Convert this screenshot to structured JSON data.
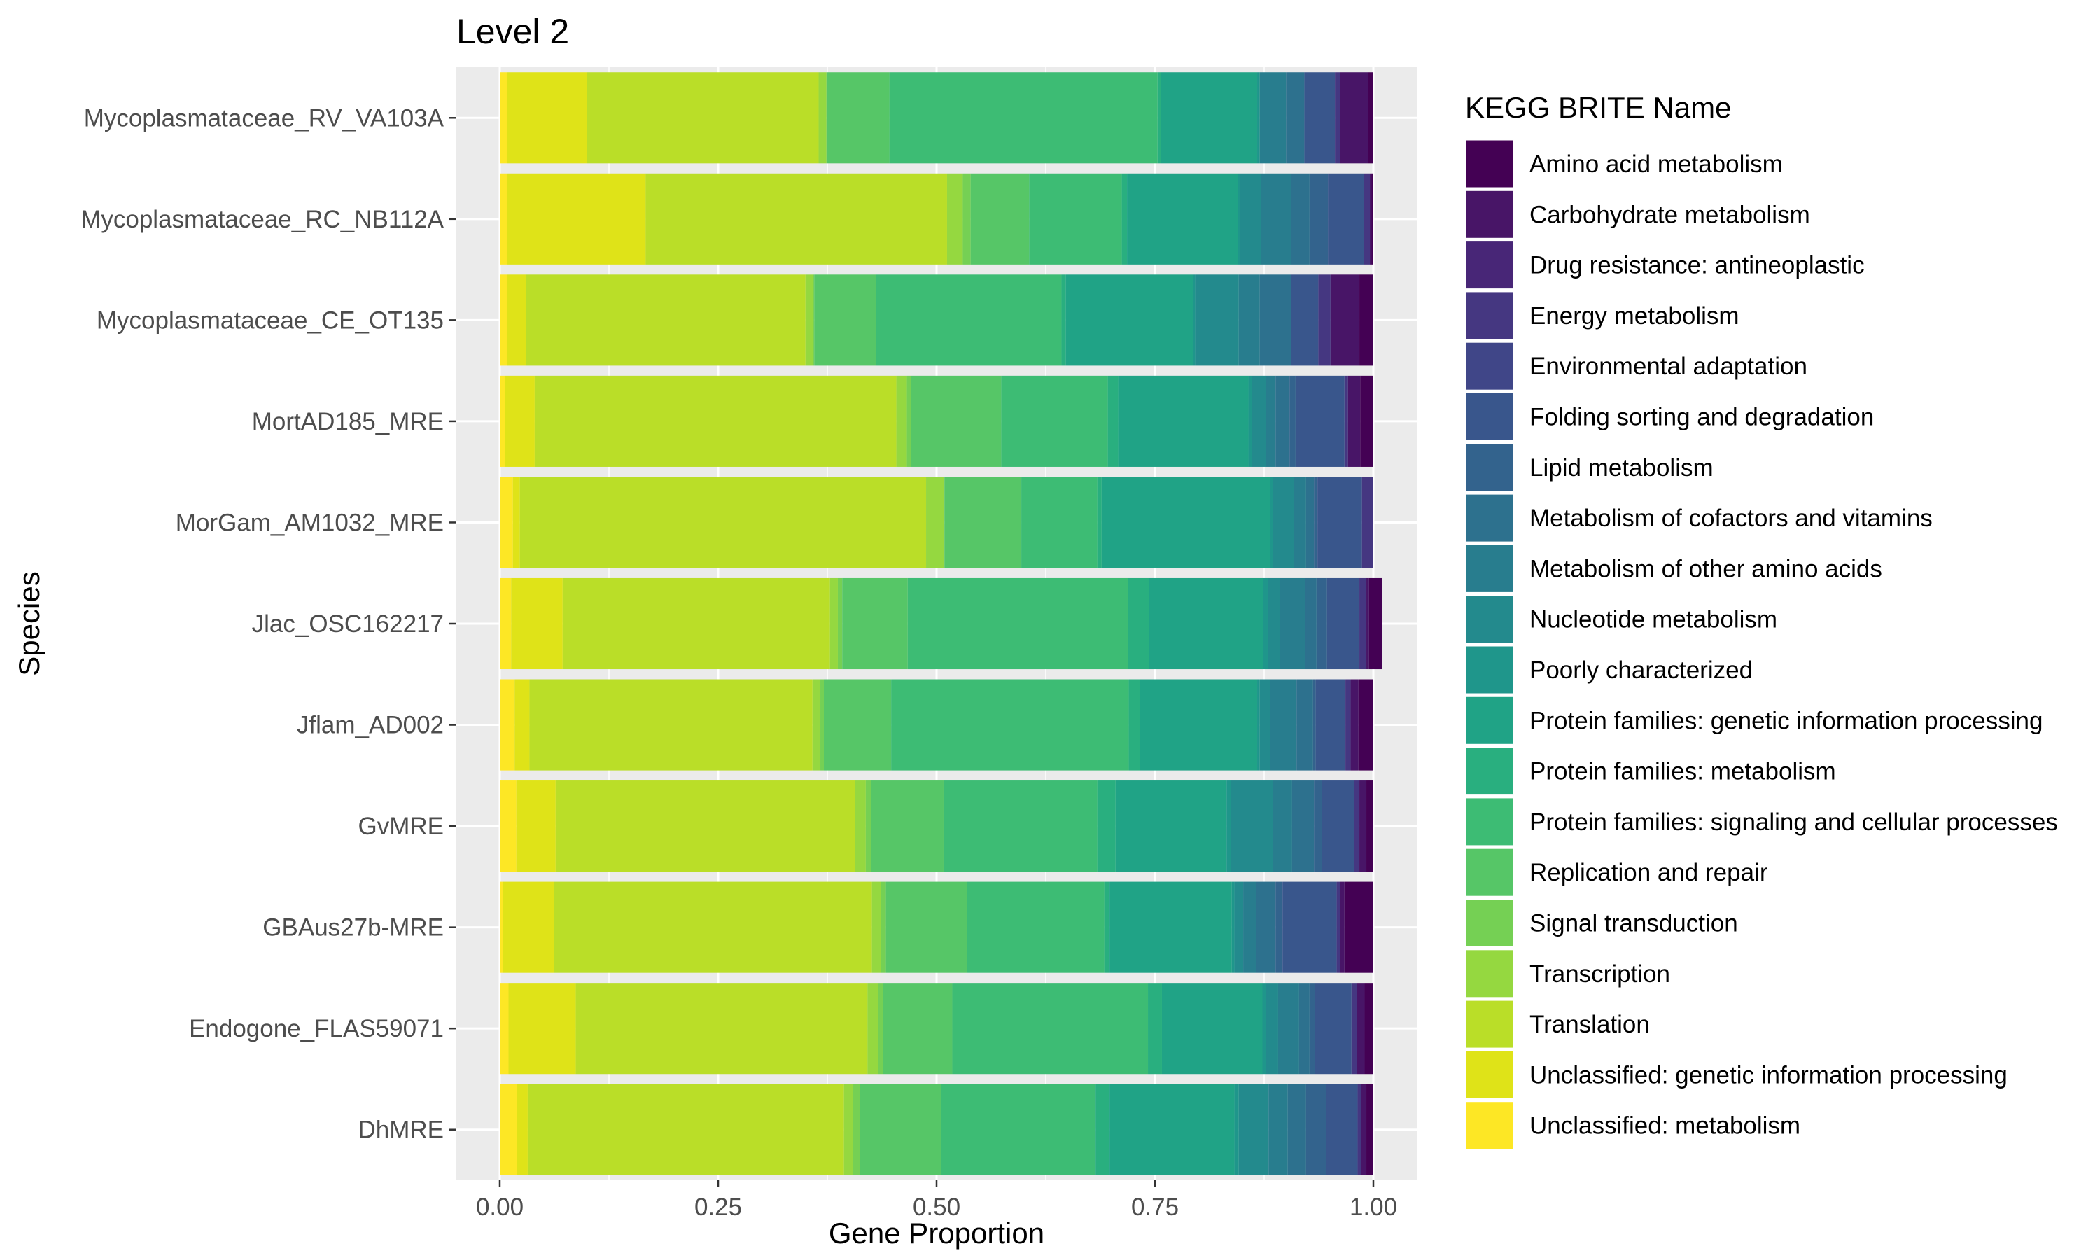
{
  "chart_data": {
    "type": "bar",
    "orientation": "horizontal",
    "stacked": true,
    "title": "Level 2",
    "xlabel": "Gene Proportion",
    "ylabel": "Species",
    "xlim": [
      0,
      1
    ],
    "x_ticks": [
      0,
      0.25,
      0.5,
      0.75,
      1
    ],
    "x_tick_labels": [
      "0.00",
      "0.25",
      "0.50",
      "0.75",
      "1.00"
    ],
    "grid": true,
    "legend": {
      "title": "KEGG BRITE Name",
      "position": "right"
    },
    "categories": [
      "Mycoplasmataceae_RV_VA103A",
      "Mycoplasmataceae_RC_NB112A",
      "Mycoplasmataceae_CE_OT135",
      "MortAD185_MRE",
      "MorGam_AM1032_MRE",
      "Jlac_OSC162217",
      "Jflam_AD002",
      "GvMRE",
      "GBAus27b-MRE",
      "Endogone_FLAS59071",
      "DhMRE"
    ],
    "series": [
      {
        "name": "Unclassified: metabolism",
        "color": "#FDE725",
        "values": [
          0.008,
          0.008,
          0.008,
          0.006,
          0.015,
          0.013,
          0.017,
          0.019,
          0.004,
          0.01,
          0.02
        ]
      },
      {
        "name": "Unclassified: genetic information processing",
        "color": "#DFE318",
        "values": [
          0.092,
          0.159,
          0.022,
          0.034,
          0.008,
          0.059,
          0.017,
          0.045,
          0.058,
          0.077,
          0.012
        ]
      },
      {
        "name": "Translation",
        "color": "#BADE28",
        "values": [
          0.265,
          0.345,
          0.32,
          0.414,
          0.465,
          0.306,
          0.324,
          0.343,
          0.364,
          0.334,
          0.362
        ]
      },
      {
        "name": "Transcription",
        "color": "#95D840",
        "values": [
          0.009,
          0.018,
          0.009,
          0.012,
          0.021,
          0.009,
          0.009,
          0.012,
          0.01,
          0.012,
          0.01
        ]
      },
      {
        "name": "Signal transduction",
        "color": "#75D054",
        "values": [
          0.0,
          0.009,
          0.001,
          0.005,
          0.0,
          0.005,
          0.004,
          0.006,
          0.006,
          0.006,
          0.008
        ]
      },
      {
        "name": "Replication and repair",
        "color": "#56C667",
        "values": [
          0.072,
          0.067,
          0.071,
          0.103,
          0.088,
          0.075,
          0.077,
          0.083,
          0.093,
          0.079,
          0.093
        ]
      },
      {
        "name": "Protein families: signaling and cellular processes",
        "color": "#3DBC74",
        "values": [
          0.307,
          0.106,
          0.212,
          0.122,
          0.087,
          0.252,
          0.272,
          0.176,
          0.157,
          0.224,
          0.177
        ]
      },
      {
        "name": "Protein families: metabolism",
        "color": "#29AF7F",
        "values": [
          0.004,
          0.006,
          0.005,
          0.012,
          0.005,
          0.024,
          0.013,
          0.021,
          0.006,
          0.016,
          0.016
        ]
      },
      {
        "name": "Protein families: genetic information processing",
        "color": "#20A386",
        "values": [
          0.11,
          0.127,
          0.146,
          0.149,
          0.193,
          0.131,
          0.134,
          0.127,
          0.14,
          0.115,
          0.143
        ]
      },
      {
        "name": "Poorly characterized",
        "color": "#1F968B",
        "values": [
          0.003,
          0.002,
          0.002,
          0.004,
          0.003,
          0.005,
          0.003,
          0.005,
          0.003,
          0.004,
          0.005
        ]
      },
      {
        "name": "Nucleotide metabolism",
        "color": "#238A8D",
        "values": [
          0.0,
          0.024,
          0.05,
          0.016,
          0.024,
          0.014,
          0.012,
          0.048,
          0.01,
          0.014,
          0.034
        ]
      },
      {
        "name": "Metabolism of other amino acids",
        "color": "#287D8E",
        "values": [
          0.03,
          0.035,
          0.024,
          0.011,
          0.014,
          0.029,
          0.03,
          0.022,
          0.015,
          0.024,
          0.022
        ]
      },
      {
        "name": "Metabolism of cofactors and vitamins",
        "color": "#2D718E",
        "values": [
          0.021,
          0.021,
          0.036,
          0.016,
          0.009,
          0.013,
          0.019,
          0.025,
          0.022,
          0.012,
          0.021
        ]
      },
      {
        "name": "Lipid metabolism",
        "color": "#33638D",
        "values": [
          0.0,
          0.021,
          0.0,
          0.007,
          0.004,
          0.012,
          0.003,
          0.009,
          0.008,
          0.006,
          0.023
        ]
      },
      {
        "name": "Folding sorting and degradation",
        "color": "#39568C",
        "values": [
          0.035,
          0.041,
          0.031,
          0.056,
          0.051,
          0.037,
          0.034,
          0.037,
          0.062,
          0.042,
          0.036
        ]
      },
      {
        "name": "Environmental adaptation",
        "color": "#404688",
        "values": [
          0.0,
          0.0,
          0.0,
          0.0,
          0.0,
          0.0,
          0.0,
          0.0,
          0.0,
          0.0,
          0.0
        ]
      },
      {
        "name": "Energy metabolism",
        "color": "#453781",
        "values": [
          0.006,
          0.007,
          0.014,
          0.004,
          0.013,
          0.008,
          0.006,
          0.006,
          0.004,
          0.006,
          0.004
        ]
      },
      {
        "name": "Drug resistance: antineoplastic",
        "color": "#482677",
        "values": [
          0.0,
          0.0,
          0.0,
          0.0,
          0.0,
          0.0,
          0.0,
          0.0,
          0.0,
          0.0,
          0.0
        ]
      },
      {
        "name": "Carbohydrate metabolism",
        "color": "#481567",
        "values": [
          0.032,
          0.002,
          0.033,
          0.014,
          0.0,
          0.003,
          0.009,
          0.008,
          0.005,
          0.009,
          0.006
        ]
      },
      {
        "name": "Amino acid metabolism",
        "color": "#440154",
        "values": [
          0.006,
          0.002,
          0.016,
          0.015,
          0.0,
          0.015,
          0.017,
          0.008,
          0.033,
          0.01,
          0.008
        ]
      }
    ]
  }
}
